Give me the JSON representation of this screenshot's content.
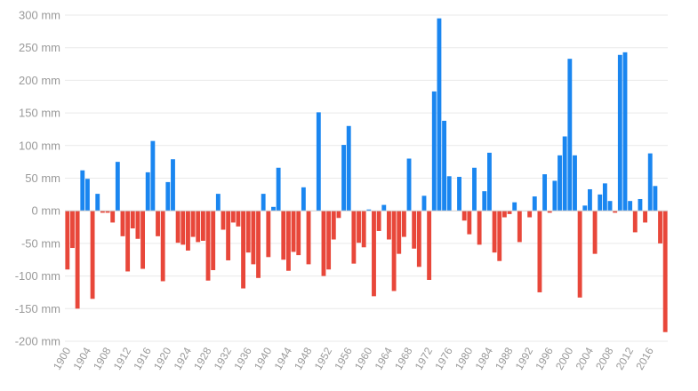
{
  "chart_data": {
    "type": "bar",
    "title": "",
    "xlabel": "",
    "ylabel": "",
    "unit": "mm",
    "ylim": [
      -200,
      300
    ],
    "y_ticks": [
      300,
      250,
      200,
      150,
      100,
      50,
      0,
      -50,
      -100,
      -150,
      -200
    ],
    "y_tick_labels": [
      "300 mm",
      "250 mm",
      "200 mm",
      "150 mm",
      "100 mm",
      "50 mm",
      "0 mm",
      "-50 mm",
      "-100 mm",
      "-150 mm",
      "-200 mm"
    ],
    "x_tick_labels": [
      "1900",
      "1904",
      "1908",
      "1912",
      "1916",
      "1920",
      "1924",
      "1928",
      "1932",
      "1936",
      "1940",
      "1944",
      "1948",
      "1952",
      "1956",
      "1960",
      "1964",
      "1968",
      "1972",
      "1976",
      "1980",
      "1984",
      "1988",
      "1992",
      "1996",
      "2000",
      "2004",
      "2008",
      "2012",
      "2016"
    ],
    "x_start": 1900,
    "x_end": 2018,
    "positive_color": "#1a86f0",
    "negative_color": "#e8473a",
    "grid": true,
    "values": [
      -90,
      -57,
      -150,
      62,
      49,
      -135,
      26,
      -3,
      -3,
      -18,
      75,
      -39,
      -93,
      -27,
      -43,
      -89,
      59,
      107,
      -39,
      -108,
      44,
      79,
      -49,
      -52,
      -61,
      -40,
      -48,
      -46,
      -107,
      -91,
      26,
      -29,
      -76,
      -18,
      -24,
      -119,
      -64,
      -82,
      -103,
      26,
      -71,
      6,
      66,
      -75,
      -92,
      -63,
      -68,
      36,
      -82,
      0,
      151,
      -100,
      -90,
      -44,
      -11,
      101,
      130,
      -81,
      -49,
      -56,
      2,
      -131,
      -31,
      9,
      -44,
      -123,
      -66,
      -40,
      80,
      -58,
      -86,
      23,
      -106,
      183,
      295,
      138,
      53,
      0,
      52,
      -15,
      -36,
      66,
      -52,
      30,
      89,
      -64,
      -77,
      -10,
      -5,
      13,
      -48,
      0,
      -10,
      22,
      -125,
      56,
      -3,
      46,
      85,
      114,
      233,
      85,
      -133,
      8,
      33,
      -66,
      25,
      42,
      15,
      -3,
      239,
      243,
      15,
      -33,
      18,
      -18,
      88,
      38,
      -50,
      -186
    ]
  }
}
